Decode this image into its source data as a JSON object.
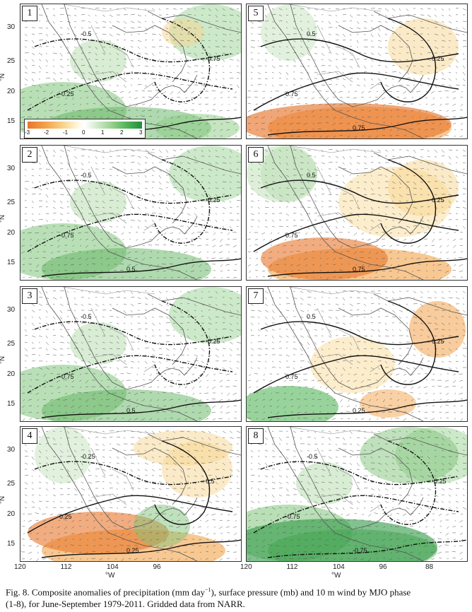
{
  "panels": [
    {
      "label": "1",
      "pattern": "wet",
      "contours": [
        {
          "text": "-0.25"
        },
        {
          "text": "-0.5"
        },
        {
          "text": "-0.75"
        },
        {
          "text": "0.25"
        }
      ]
    },
    {
      "label": "2",
      "pattern": "wet",
      "contours": [
        {
          "text": "-0.75"
        },
        {
          "text": "-0.5"
        },
        {
          "text": "-0.25"
        },
        {
          "text": "0.5"
        }
      ]
    },
    {
      "label": "3",
      "pattern": "wet",
      "contours": [
        {
          "text": "-0.75"
        },
        {
          "text": "-0.5"
        },
        {
          "text": "-0.25"
        },
        {
          "text": "0.5"
        }
      ]
    },
    {
      "label": "4",
      "pattern": "dry",
      "contours": [
        {
          "text": "0.25"
        },
        {
          "text": "-0.25"
        },
        {
          "text": "0.5"
        },
        {
          "text": "0.25"
        }
      ]
    },
    {
      "label": "5",
      "pattern": "dry",
      "contours": [
        {
          "text": "0.75"
        },
        {
          "text": "0.5"
        },
        {
          "text": "0.25"
        },
        {
          "text": "0.75"
        }
      ]
    },
    {
      "label": "6",
      "pattern": "dry",
      "contours": [
        {
          "text": "0.75"
        },
        {
          "text": "0.5"
        },
        {
          "text": "0.25"
        },
        {
          "text": "0.75"
        }
      ]
    },
    {
      "label": "7",
      "pattern": "mixed",
      "contours": [
        {
          "text": "0.75"
        },
        {
          "text": "0.5"
        },
        {
          "text": "0.25"
        },
        {
          "text": "0.25"
        }
      ]
    },
    {
      "label": "8",
      "pattern": "wet",
      "contours": [
        {
          "text": "-0.75"
        },
        {
          "text": "-0.5"
        },
        {
          "text": "-0.25"
        },
        {
          "text": "-0.75"
        }
      ]
    }
  ],
  "axes": {
    "y_ticks": [
      "30",
      "25",
      "20",
      "15"
    ],
    "y_label": "°N",
    "x_ticks": [
      "120",
      "112",
      "104",
      "96",
      "88"
    ],
    "x_label": "°W"
  },
  "colorbar": {
    "ticks": [
      "-3",
      "-2",
      "-1",
      "0",
      "1",
      "2",
      "3"
    ],
    "colors": {
      "dry": "#e8762c",
      "wet": "#1f8f3a"
    }
  },
  "caption": {
    "line1_a": "Fig. 8. Composite anomalies of precipitation (mm day",
    "line1_sup": "−1",
    "line1_b": "), surface pressure (mb) and 10 m wind by MJO phase",
    "line2": "(1-8), for June-September 1979-2011. Gridded data from NARR."
  }
}
